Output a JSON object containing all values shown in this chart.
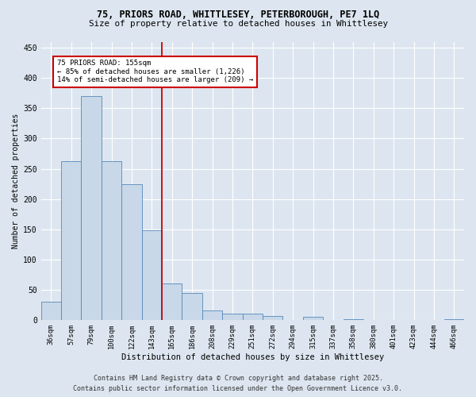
{
  "title_line1": "75, PRIORS ROAD, WHITTLESEY, PETERBOROUGH, PE7 1LQ",
  "title_line2": "Size of property relative to detached houses in Whittlesey",
  "xlabel": "Distribution of detached houses by size in Whittlesey",
  "ylabel": "Number of detached properties",
  "categories": [
    "36sqm",
    "57sqm",
    "79sqm",
    "100sqm",
    "122sqm",
    "143sqm",
    "165sqm",
    "186sqm",
    "208sqm",
    "229sqm",
    "251sqm",
    "272sqm",
    "294sqm",
    "315sqm",
    "337sqm",
    "358sqm",
    "380sqm",
    "401sqm",
    "423sqm",
    "444sqm",
    "466sqm"
  ],
  "values": [
    30,
    262,
    370,
    262,
    225,
    148,
    60,
    45,
    16,
    10,
    10,
    7,
    0,
    5,
    0,
    1,
    0,
    0,
    0,
    0,
    2
  ],
  "bar_color": "#c8d8e8",
  "bar_edge_color": "#5588bb",
  "vline_x_index": 5.5,
  "annotation_text_line1": "75 PRIORS ROAD: 155sqm",
  "annotation_text_line2": "← 85% of detached houses are smaller (1,226)",
  "annotation_text_line3": "14% of semi-detached houses are larger (209) →",
  "vline_color": "#cc0000",
  "annotation_box_edgecolor": "#cc0000",
  "ylim": [
    0,
    460
  ],
  "yticks": [
    0,
    50,
    100,
    150,
    200,
    250,
    300,
    350,
    400,
    450
  ],
  "footer_line1": "Contains HM Land Registry data © Crown copyright and database right 2025.",
  "footer_line2": "Contains public sector information licensed under the Open Government Licence v3.0.",
  "bg_color": "#dde6f0",
  "plot_bg_color": "#dde6f0"
}
